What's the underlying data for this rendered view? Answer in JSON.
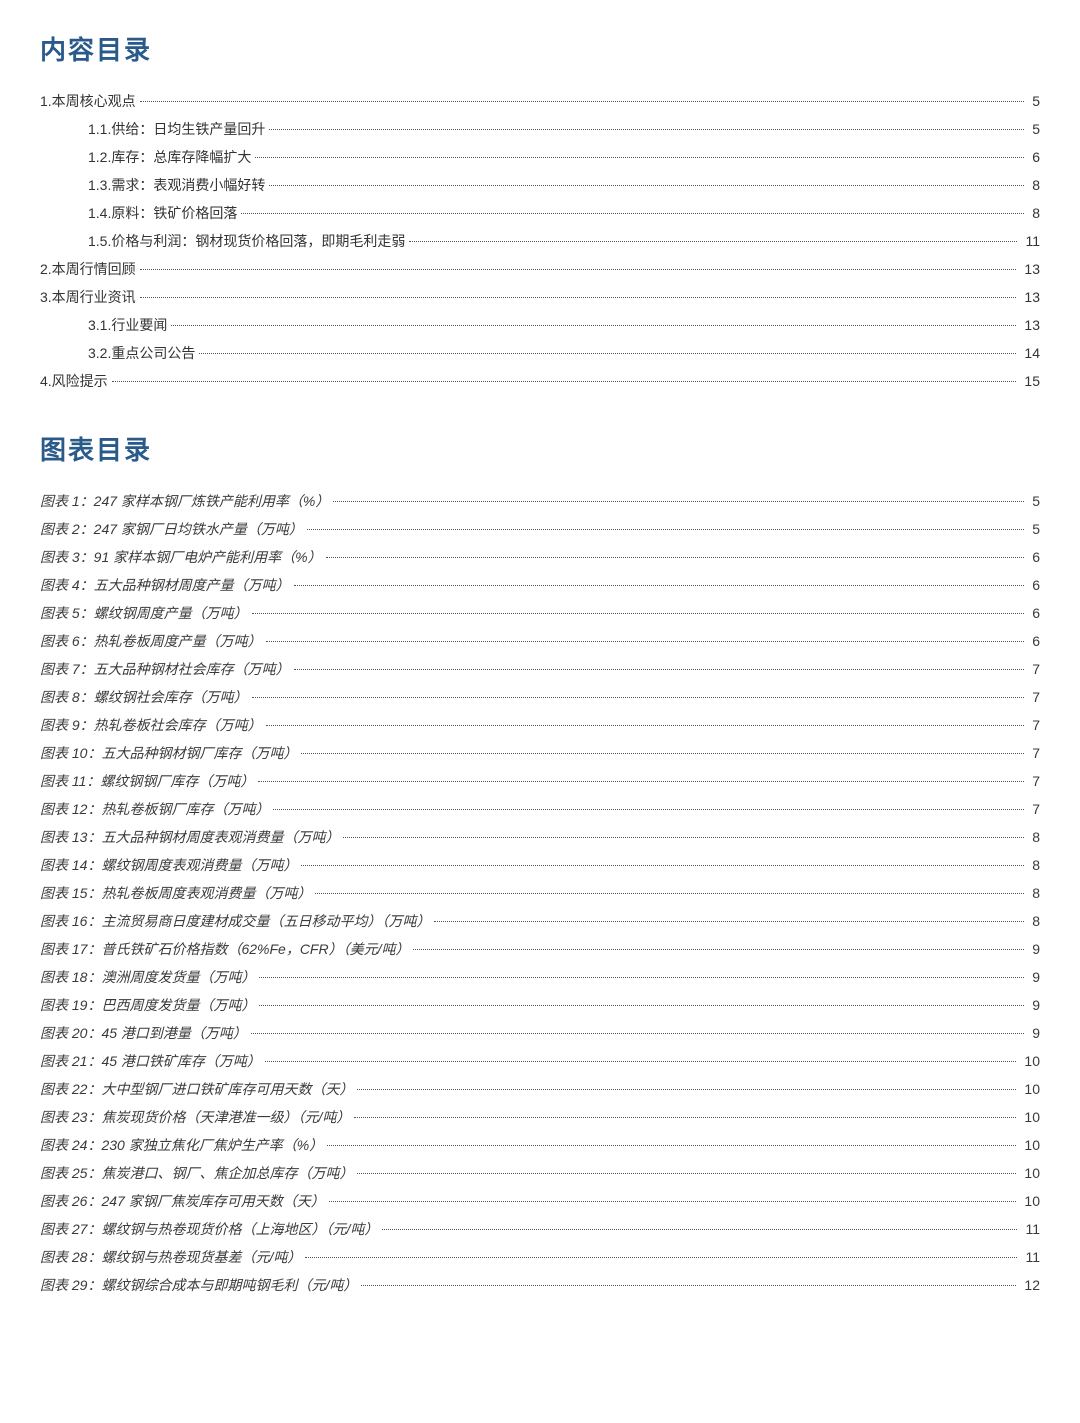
{
  "headings": {
    "contents": "内容目录",
    "figures": "图表目录"
  },
  "toc": [
    {
      "level": 0,
      "label": "1.本周核心观点",
      "page": "5"
    },
    {
      "level": 1,
      "label": "1.1.供给：日均生铁产量回升",
      "page": "5"
    },
    {
      "level": 1,
      "label": "1.2.库存：总库存降幅扩大",
      "page": "6"
    },
    {
      "level": 1,
      "label": "1.3.需求：表观消费小幅好转",
      "page": "8"
    },
    {
      "level": 1,
      "label": "1.4.原料：铁矿价格回落",
      "page": "8"
    },
    {
      "level": 1,
      "label": "1.5.价格与利润：钢材现货价格回落，即期毛利走弱",
      "page": "11"
    },
    {
      "level": 0,
      "label": "2.本周行情回顾",
      "page": "13"
    },
    {
      "level": 0,
      "label": "3.本周行业资讯",
      "page": "13"
    },
    {
      "level": 1,
      "label": "3.1.行业要闻",
      "page": "13"
    },
    {
      "level": 1,
      "label": "3.2.重点公司公告",
      "page": "14"
    },
    {
      "level": 0,
      "label": "4.风险提示",
      "page": "15"
    }
  ],
  "figures": [
    {
      "label": "图表 1：247 家样本钢厂炼铁产能利用率（%）",
      "page": "5"
    },
    {
      "label": "图表 2：247 家钢厂日均铁水产量（万吨）",
      "page": "5"
    },
    {
      "label": "图表 3：91 家样本钢厂电炉产能利用率（%）",
      "page": "6"
    },
    {
      "label": "图表 4：五大品种钢材周度产量（万吨）",
      "page": "6"
    },
    {
      "label": "图表 5：螺纹钢周度产量（万吨）",
      "page": "6"
    },
    {
      "label": "图表 6：热轧卷板周度产量（万吨）",
      "page": "6"
    },
    {
      "label": "图表 7：五大品种钢材社会库存（万吨）",
      "page": "7"
    },
    {
      "label": "图表 8：螺纹钢社会库存（万吨）",
      "page": "7"
    },
    {
      "label": "图表 9：热轧卷板社会库存（万吨）",
      "page": "7"
    },
    {
      "label": "图表 10：五大品种钢材钢厂库存（万吨）",
      "page": "7"
    },
    {
      "label": "图表 11：螺纹钢钢厂库存（万吨）",
      "page": "7"
    },
    {
      "label": "图表 12：热轧卷板钢厂库存（万吨）",
      "page": "7"
    },
    {
      "label": "图表 13：五大品种钢材周度表观消费量（万吨）",
      "page": "8"
    },
    {
      "label": "图表 14：螺纹钢周度表观消费量（万吨）",
      "page": "8"
    },
    {
      "label": "图表 15：热轧卷板周度表观消费量（万吨）",
      "page": "8"
    },
    {
      "label": "图表 16：主流贸易商日度建材成交量（五日移动平均）（万吨）",
      "page": "8"
    },
    {
      "label": "图表 17：普氏铁矿石价格指数（62%Fe，CFR）（美元/吨）",
      "page": "9"
    },
    {
      "label": "图表 18：澳洲周度发货量（万吨）",
      "page": "9"
    },
    {
      "label": "图表 19：巴西周度发货量（万吨）",
      "page": "9"
    },
    {
      "label": "图表 20：45 港口到港量（万吨）",
      "page": "9"
    },
    {
      "label": "图表 21：45 港口铁矿库存（万吨）",
      "page": "10"
    },
    {
      "label": "图表 22：大中型钢厂进口铁矿库存可用天数（天）",
      "page": "10"
    },
    {
      "label": "图表 23：焦炭现货价格（天津港准一级）（元/吨）",
      "page": "10"
    },
    {
      "label": "图表 24：230 家独立焦化厂焦炉生产率（%）",
      "page": "10"
    },
    {
      "label": "图表 25：焦炭港口、钢厂、焦企加总库存（万吨）",
      "page": "10"
    },
    {
      "label": "图表 26：247 家钢厂焦炭库存可用天数（天）",
      "page": "10"
    },
    {
      "label": "图表 27：螺纹钢与热卷现货价格（上海地区）（元/吨）",
      "page": "11"
    },
    {
      "label": "图表 28：螺纹钢与热卷现货基差（元/吨）",
      "page": "11"
    },
    {
      "label": "图表 29：螺纹钢综合成本与即期吨钢毛利（元/吨）",
      "page": "12"
    }
  ],
  "colors": {
    "heading": "#2a5a8a",
    "text": "#333333",
    "background": "#ffffff",
    "leader": "#555555"
  },
  "typography": {
    "heading_fontsize": 26,
    "body_fontsize": 14,
    "line_height": 2.0
  }
}
